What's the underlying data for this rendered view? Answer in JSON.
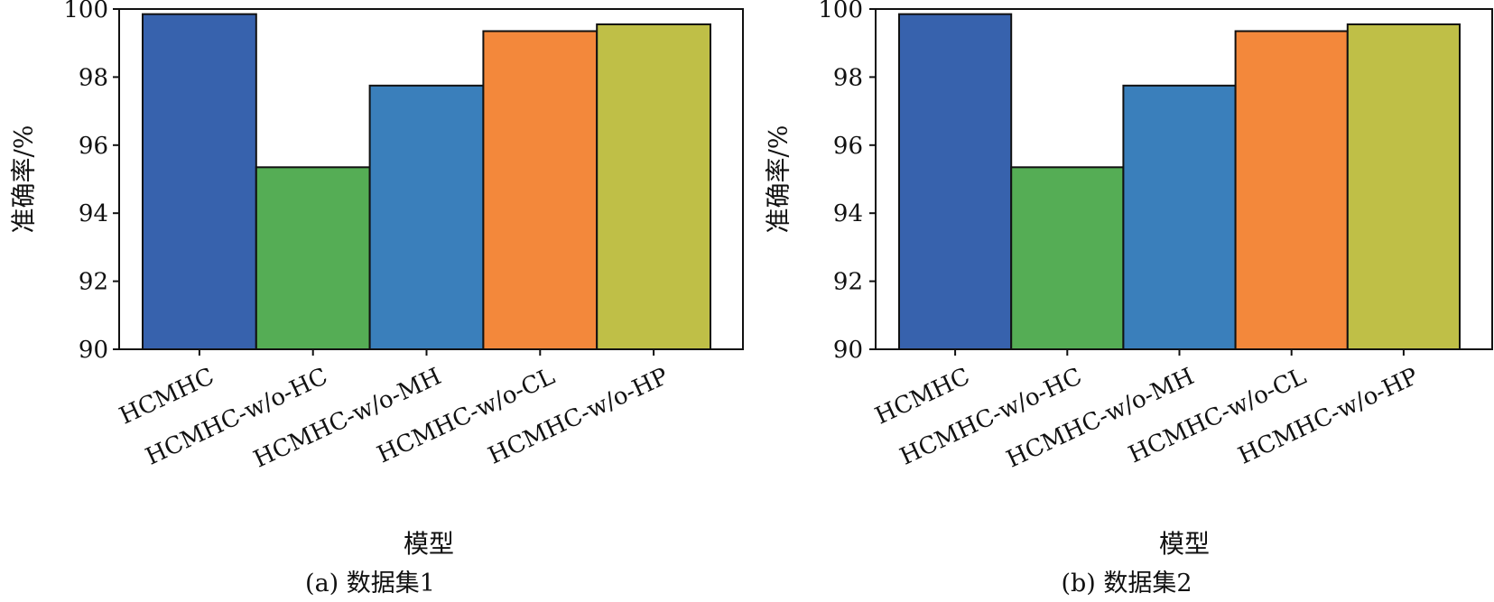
{
  "chart_data": [
    {
      "type": "bar",
      "caption": "(a) 数据集1",
      "xlabel": "模型",
      "ylabel": "准确率/%",
      "ylim": [
        90,
        100
      ],
      "yticks": [
        "90",
        "92",
        "94",
        "96",
        "98",
        "100"
      ],
      "yticks_values": [
        90,
        92,
        94,
        96,
        98,
        100
      ],
      "categories": [
        "HCMHC",
        "HCMHC-w/o-HC",
        "HCMHC-w/o-MH",
        "HCMHC-w/o-CL",
        "HCMHC-w/o-HP"
      ],
      "values": [
        99.85,
        95.35,
        97.75,
        99.35,
        99.55
      ],
      "colors": [
        "#3762ad",
        "#55ad55",
        "#3a7fbb",
        "#f3883b",
        "#bfbf47"
      ],
      "grid": false,
      "legend": "none"
    },
    {
      "type": "bar",
      "caption": "(b) 数据集2",
      "xlabel": "模型",
      "ylabel": "准确率/%",
      "ylim": [
        90,
        100
      ],
      "yticks": [
        "90",
        "92",
        "94",
        "96",
        "98",
        "100"
      ],
      "yticks_values": [
        90,
        92,
        94,
        96,
        98,
        100
      ],
      "categories": [
        "HCMHC",
        "HCMHC-w/o-HC",
        "HCMHC-w/o-MH",
        "HCMHC-w/o-CL",
        "HCMHC-w/o-HP"
      ],
      "values": [
        99.85,
        95.35,
        97.75,
        99.35,
        99.55
      ],
      "colors": [
        "#3762ad",
        "#55ad55",
        "#3a7fbb",
        "#f3883b",
        "#bfbf47"
      ],
      "grid": false,
      "legend": "none"
    }
  ]
}
